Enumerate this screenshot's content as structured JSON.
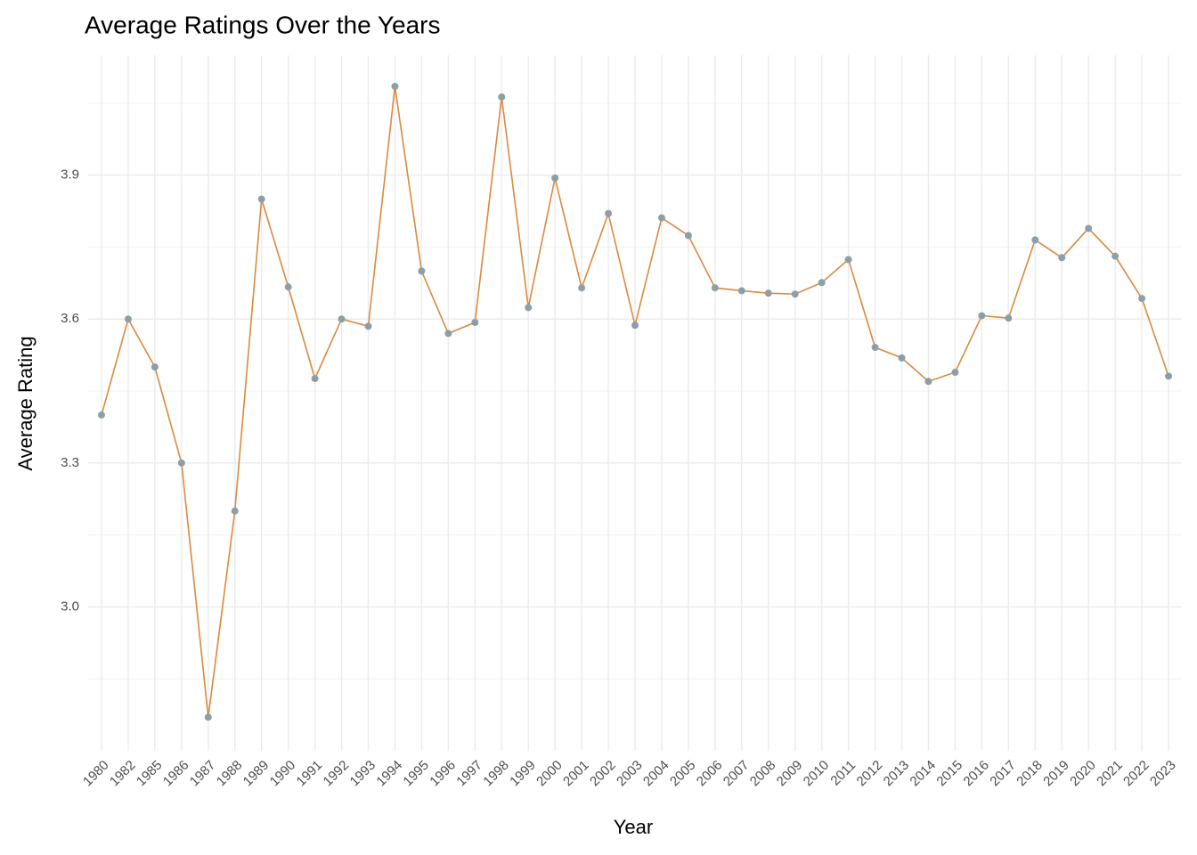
{
  "chart_data": {
    "type": "line",
    "title": "Average Ratings Over the Years",
    "x_label": "Year",
    "y_label": "Average Rating",
    "categories": [
      "1980",
      "1982",
      "1985",
      "1986",
      "1987",
      "1988",
      "1989",
      "1990",
      "1991",
      "1992",
      "1993",
      "1994",
      "1995",
      "1996",
      "1997",
      "1998",
      "1999",
      "2000",
      "2001",
      "2002",
      "2003",
      "2004",
      "2005",
      "2006",
      "2007",
      "2008",
      "2009",
      "2010",
      "2011",
      "2012",
      "2013",
      "2014",
      "2015",
      "2016",
      "2017",
      "2018",
      "2019",
      "2020",
      "2021",
      "2022",
      "2023"
    ],
    "values": [
      3.4,
      3.6,
      3.5,
      3.3,
      2.77,
      3.2,
      3.85,
      3.667,
      3.476,
      3.6,
      3.585,
      4.085,
      3.7,
      3.57,
      3.593,
      4.063,
      3.624,
      3.894,
      3.665,
      3.82,
      3.587,
      3.811,
      3.774,
      3.665,
      3.659,
      3.654,
      3.652,
      3.676,
      3.724,
      3.541,
      3.519,
      3.47,
      3.489,
      3.607,
      3.602,
      3.765,
      3.728,
      3.789,
      3.731,
      3.643,
      3.481
    ],
    "color": "#d98a3f",
    "point_color": "#8c9fa8",
    "ylim": [
      2.7,
      4.15
    ],
    "yticks": [
      {
        "value": 3,
        "label": "3.0"
      },
      3.3,
      3.6,
      3.9
    ],
    "grid": true
  }
}
